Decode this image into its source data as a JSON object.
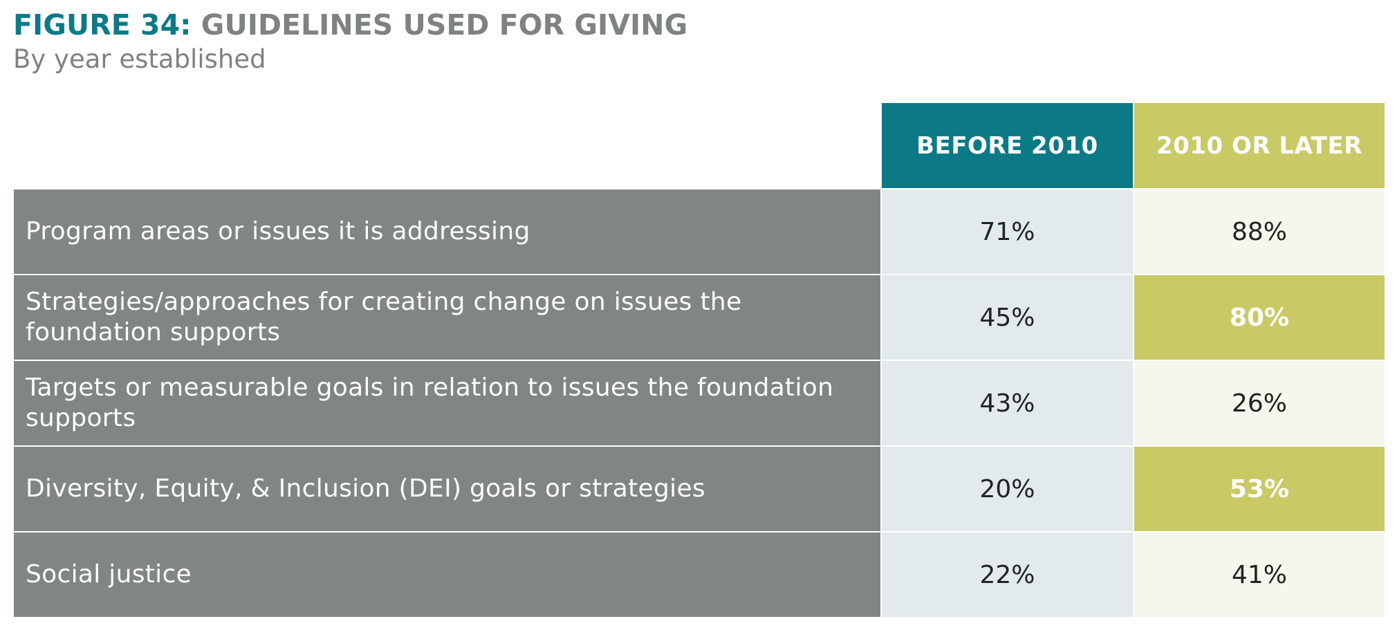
{
  "figure": {
    "number": "FIGURE 34:",
    "title": "GUIDELINES USED FOR GIVING",
    "subtitle": "By year established"
  },
  "colors": {
    "teal": "#0b7a86",
    "olive": "#c9c966",
    "label_gray": "#808585",
    "light_teal_cell": "#e2eaec",
    "light_olive_cell": "#f5f7ec"
  },
  "chart_data": {
    "type": "table",
    "title": "GUIDELINES USED FOR GIVING",
    "subtitle": "By year established",
    "columns": [
      "BEFORE 2010",
      "2010 OR LATER"
    ],
    "rows": [
      {
        "label": "Program areas or issues it is addressing",
        "values": [
          "71%",
          "88%"
        ],
        "highlight_later": false
      },
      {
        "label": "Strategies/approaches for creating change on issues the foundation supports",
        "values": [
          "45%",
          "80%"
        ],
        "highlight_later": true
      },
      {
        "label": "Targets or measurable goals in relation to issues the foundation supports",
        "values": [
          "43%",
          "26%"
        ],
        "highlight_later": false
      },
      {
        "label": "Diversity, Equity, & Inclusion (DEI) goals or strategies",
        "values": [
          "20%",
          "53%"
        ],
        "highlight_later": true
      },
      {
        "label": "Social justice",
        "values": [
          "22%",
          "41%"
        ],
        "highlight_later": false
      }
    ]
  }
}
